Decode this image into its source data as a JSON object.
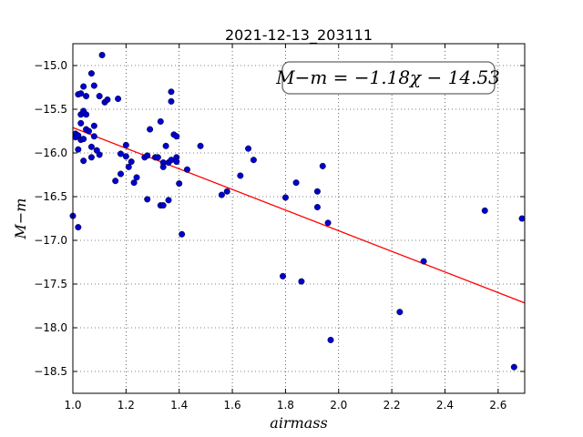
{
  "chart_data": {
    "type": "scatter",
    "title": "2021-12-13_203111",
    "xlabel": "airmass",
    "ylabel": "M−m",
    "xlim": [
      1.0,
      2.7
    ],
    "ylim": [
      -14.75,
      -18.75
    ],
    "y_inverted": true,
    "grid": true,
    "x_ticks": [
      "1.0",
      "1.2",
      "1.4",
      "1.6",
      "1.8",
      "2.0",
      "2.2",
      "2.4",
      "2.6"
    ],
    "y_ticks": [
      "−15.0",
      "−15.5",
      "−16.0",
      "−16.5",
      "−17.0",
      "−17.5",
      "−18.0",
      "−18.5"
    ],
    "x_tick_values": [
      1.0,
      1.2,
      1.4,
      1.6,
      1.8,
      2.0,
      2.2,
      2.4,
      2.6
    ],
    "y_tick_values": [
      -15.0,
      -15.5,
      -16.0,
      -16.5,
      -17.0,
      -17.5,
      -18.0,
      -18.5
    ],
    "annotation": "M−m = −1.18χ − 14.53",
    "fit_line": {
      "slope": -1.18,
      "intercept": -14.53,
      "color": "#ff0000"
    },
    "point_color": "#0000cc",
    "series": [
      {
        "x": [
          1.0,
          1.01,
          1.01,
          1.02,
          1.02,
          1.02,
          1.02,
          1.03,
          1.03,
          1.03,
          1.03,
          1.04,
          1.04,
          1.04,
          1.04,
          1.05,
          1.05,
          1.05,
          1.06,
          1.07,
          1.07,
          1.07,
          1.08,
          1.08,
          1.08,
          1.09,
          1.1,
          1.1,
          1.11,
          1.12,
          1.13,
          1.16,
          1.17,
          1.18,
          1.18,
          1.2,
          1.2,
          1.21,
          1.22,
          1.23,
          1.24,
          1.27,
          1.28,
          1.28,
          1.29,
          1.31,
          1.32,
          1.33,
          1.33,
          1.34,
          1.34,
          1.34,
          1.35,
          1.36,
          1.36,
          1.37,
          1.37,
          1.37,
          1.38,
          1.39,
          1.39,
          1.39,
          1.4,
          1.41,
          1.43,
          1.48,
          1.56,
          1.58,
          1.63,
          1.66,
          1.68,
          1.79,
          1.8,
          1.84,
          1.86,
          1.92,
          1.92,
          1.94,
          1.96,
          1.97,
          2.23,
          2.32,
          2.55,
          2.66,
          2.69
        ],
        "y": [
          -16.72,
          -15.78,
          -15.82,
          -15.33,
          -15.8,
          -15.96,
          -16.85,
          -15.32,
          -15.56,
          -15.66,
          -15.85,
          -15.24,
          -15.52,
          -15.84,
          -16.09,
          -15.35,
          -15.56,
          -15.73,
          -15.75,
          -15.09,
          -15.93,
          -16.05,
          -15.23,
          -15.69,
          -15.81,
          -15.97,
          -16.02,
          -15.35,
          -14.88,
          -15.42,
          -15.39,
          -16.32,
          -15.38,
          -16.01,
          -16.24,
          -15.91,
          -16.04,
          -16.16,
          -16.1,
          -16.34,
          -16.28,
          -16.05,
          -16.53,
          -16.03,
          -15.73,
          -16.05,
          -16.05,
          -15.64,
          -16.6,
          -16.11,
          -16.16,
          -16.6,
          -15.92,
          -16.54,
          -16.11,
          -16.08,
          -15.41,
          -15.3,
          -15.79,
          -16.05,
          -16.1,
          -15.81,
          -16.35,
          -16.93,
          -16.19,
          -15.92,
          -16.48,
          -16.44,
          -16.26,
          -15.95,
          -16.08,
          -17.41,
          -16.51,
          -16.34,
          -17.47,
          -16.44,
          -16.62,
          -16.15,
          -16.8,
          -18.14,
          -17.82,
          -17.24,
          -16.66,
          -18.45,
          -16.75
        ]
      }
    ]
  }
}
